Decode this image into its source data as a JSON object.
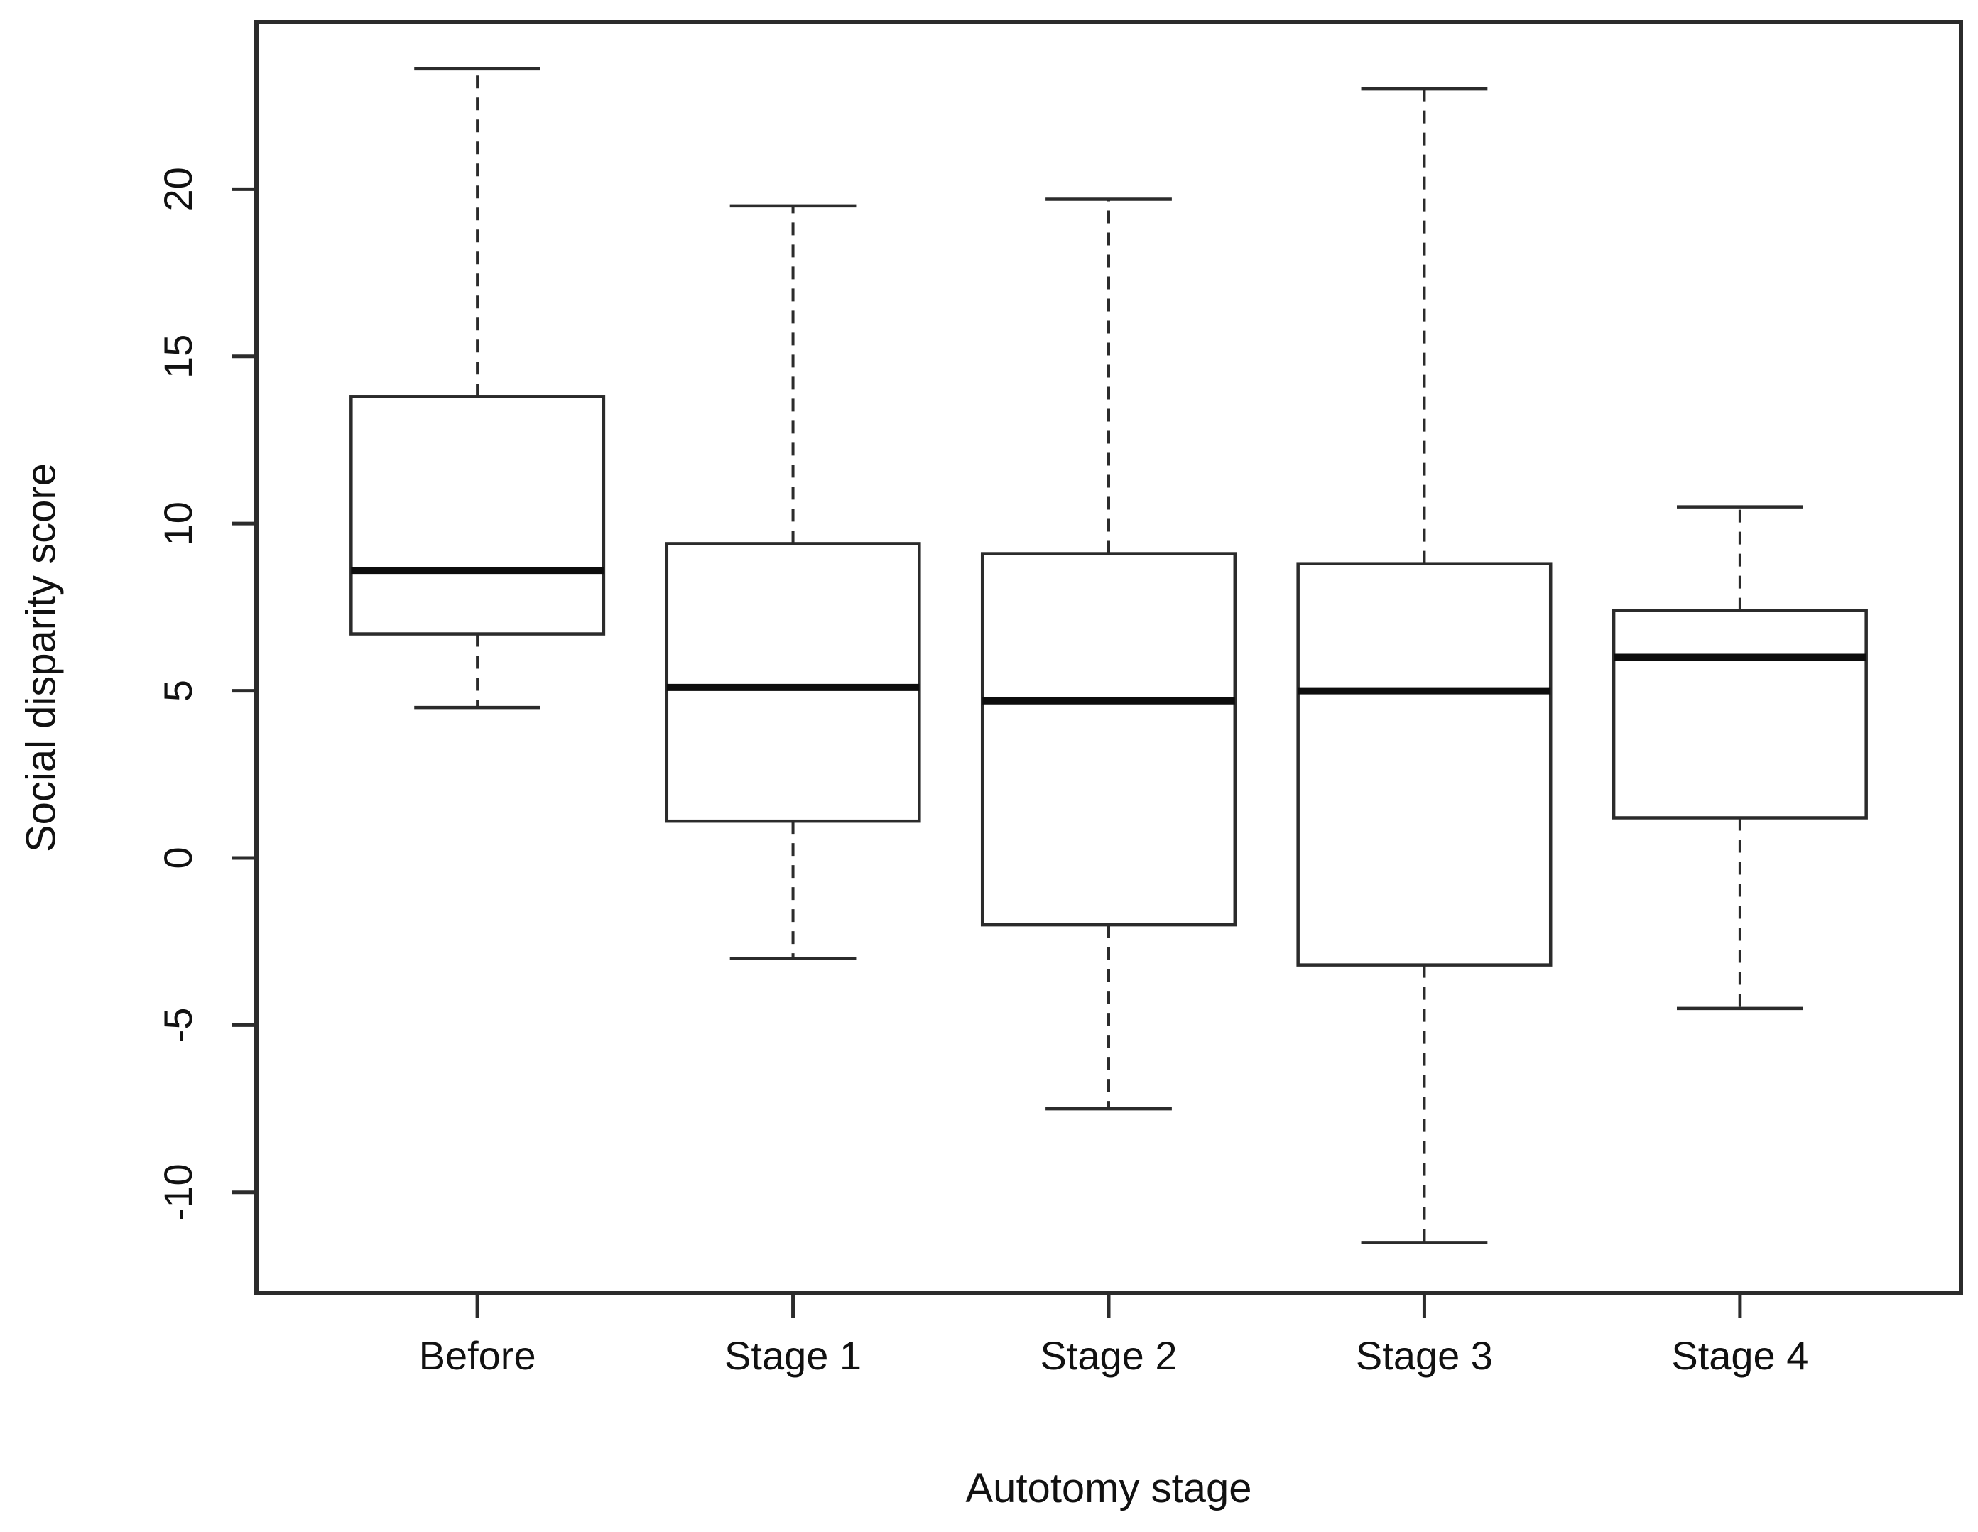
{
  "figure": {
    "background": "#ffffff",
    "line_color": "#2b2b2b",
    "median_color": "#0d0d0d",
    "text_color": "#111111"
  },
  "chart_data": {
    "type": "boxplot",
    "title": "",
    "xlabel": "Autotomy stage",
    "ylabel": "Social disparity score",
    "categories": [
      "Before",
      "Stage 1",
      "Stage 2",
      "Stage 3",
      "Stage 4"
    ],
    "series": [
      {
        "name": "Before",
        "whisker_low": 4.5,
        "q1": 6.7,
        "median": 8.6,
        "q3": 13.8,
        "whisker_high": 23.6
      },
      {
        "name": "Stage 1",
        "whisker_low": -3.0,
        "q1": 1.1,
        "median": 5.1,
        "q3": 9.4,
        "whisker_high": 19.5
      },
      {
        "name": "Stage 2",
        "whisker_low": -7.5,
        "q1": -2.0,
        "median": 4.7,
        "q3": 9.1,
        "whisker_high": 19.7
      },
      {
        "name": "Stage 3",
        "whisker_low": -11.5,
        "q1": -3.2,
        "median": 5.0,
        "q3": 8.8,
        "whisker_high": 23.0
      },
      {
        "name": "Stage 4",
        "whisker_low": -4.5,
        "q1": 1.2,
        "median": 6.0,
        "q3": 7.4,
        "whisker_high": 10.5
      }
    ],
    "y_ticks": [
      20,
      15,
      10,
      5,
      0,
      -5,
      -10
    ],
    "ylim": [
      -13,
      25
    ],
    "grid": false,
    "legend": false
  }
}
